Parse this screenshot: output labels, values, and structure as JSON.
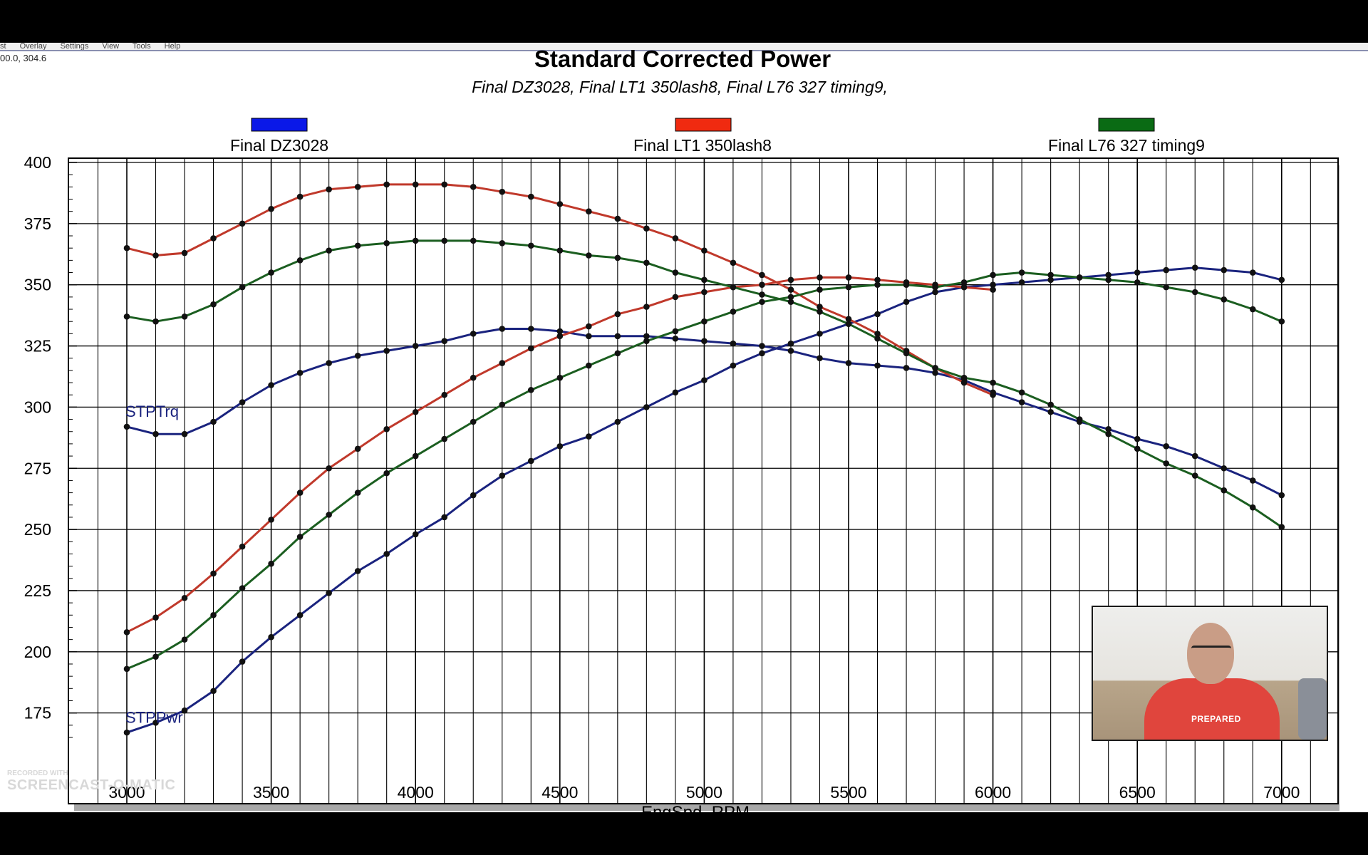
{
  "app": {
    "menu": [
      "st",
      "Overlay",
      "Settings",
      "View",
      "Tools",
      "Help"
    ],
    "coordinate_readout": "00.0, 304.6"
  },
  "chart_data": {
    "type": "line",
    "title": "Standard Corrected Power",
    "subtitle": "Final DZ3028, Final LT1 350lash8, Final L76 327 timing9,",
    "xlabel": "EngSpd, RPM",
    "ylabel": "",
    "xlim": [
      3000,
      7200
    ],
    "ylim": [
      160,
      400
    ],
    "x_ticks": [
      3000,
      3500,
      4000,
      4500,
      5000,
      5500,
      6000,
      6500,
      7000
    ],
    "x_tick_labels": [
      "3000",
      "3500",
      "4000",
      "4500",
      "5000",
      "5500",
      "6000",
      "6500",
      "7000"
    ],
    "y_ticks": [
      175,
      200,
      225,
      250,
      275,
      300,
      325,
      350,
      375,
      400
    ],
    "y_tick_labels": [
      "175",
      "200",
      "225",
      "250",
      "275",
      "300",
      "325",
      "350",
      "375",
      "400"
    ],
    "grid": true,
    "legend_position": "top",
    "curve_labels": [
      {
        "text": "STPTrq",
        "x": 3000,
        "y": 296
      },
      {
        "text": "STPPwr",
        "x": 3000,
        "y": 171
      }
    ],
    "series": [
      {
        "name": "Final DZ3028",
        "color": "#0a18e8",
        "line_color": "#1a237e",
        "metric": "torque",
        "x": [
          3000,
          3100,
          3200,
          3300,
          3400,
          3500,
          3600,
          3700,
          3800,
          3900,
          4000,
          4100,
          4200,
          4300,
          4400,
          4500,
          4600,
          4700,
          4800,
          4900,
          5000,
          5100,
          5200,
          5300,
          5400,
          5500,
          5600,
          5700,
          5800,
          5900,
          6000,
          6100,
          6200,
          6300,
          6400,
          6500,
          6600,
          6700,
          6800,
          6900,
          7000
        ],
        "y": [
          292,
          289,
          289,
          294,
          302,
          309,
          314,
          318,
          321,
          323,
          325,
          327,
          330,
          332,
          332,
          331,
          329,
          329,
          329,
          328,
          327,
          326,
          325,
          323,
          320,
          318,
          317,
          316,
          314,
          311,
          306,
          302,
          298,
          294,
          291,
          287,
          284,
          280,
          275,
          270,
          264
        ]
      },
      {
        "name": "Final DZ3028",
        "color": "#0a18e8",
        "line_color": "#1a237e",
        "metric": "power",
        "x": [
          3000,
          3100,
          3200,
          3300,
          3400,
          3500,
          3600,
          3700,
          3800,
          3900,
          4000,
          4100,
          4200,
          4300,
          4400,
          4500,
          4600,
          4700,
          4800,
          4900,
          5000,
          5100,
          5200,
          5300,
          5400,
          5500,
          5600,
          5700,
          5800,
          5900,
          6000,
          6100,
          6200,
          6300,
          6400,
          6500,
          6600,
          6700,
          6800,
          6900,
          7000
        ],
        "y": [
          167,
          171,
          176,
          184,
          196,
          206,
          215,
          224,
          233,
          240,
          248,
          255,
          264,
          272,
          278,
          284,
          288,
          294,
          300,
          306,
          311,
          317,
          322,
          326,
          330,
          334,
          338,
          343,
          347,
          349,
          350,
          351,
          352,
          353,
          354,
          355,
          356,
          357,
          356,
          355,
          352
        ]
      },
      {
        "name": "Final LT1 350lash8",
        "color": "#f02a10",
        "line_color": "#c0392b",
        "metric": "torque",
        "x": [
          3000,
          3100,
          3200,
          3300,
          3400,
          3500,
          3600,
          3700,
          3800,
          3900,
          4000,
          4100,
          4200,
          4300,
          4400,
          4500,
          4600,
          4700,
          4800,
          4900,
          5000,
          5100,
          5200,
          5300,
          5400,
          5500,
          5600,
          5700,
          5800,
          5900,
          6000
        ],
        "y": [
          365,
          362,
          363,
          369,
          375,
          381,
          386,
          389,
          390,
          391,
          391,
          391,
          390,
          388,
          386,
          383,
          380,
          377,
          373,
          369,
          364,
          359,
          354,
          348,
          341,
          336,
          330,
          323,
          316,
          310,
          305
        ]
      },
      {
        "name": "Final LT1 350lash8",
        "color": "#f02a10",
        "line_color": "#c0392b",
        "metric": "power",
        "x": [
          3000,
          3100,
          3200,
          3300,
          3400,
          3500,
          3600,
          3700,
          3800,
          3900,
          4000,
          4100,
          4200,
          4300,
          4400,
          4500,
          4600,
          4700,
          4800,
          4900,
          5000,
          5100,
          5200,
          5300,
          5400,
          5500,
          5600,
          5700,
          5800,
          5900,
          6000
        ],
        "y": [
          208,
          214,
          222,
          232,
          243,
          254,
          265,
          275,
          283,
          291,
          298,
          305,
          312,
          318,
          324,
          329,
          333,
          338,
          341,
          345,
          347,
          349,
          350,
          352,
          353,
          353,
          352,
          351,
          350,
          349,
          348
        ]
      },
      {
        "name": "Final L76 327 timing9",
        "color": "#0a6b14",
        "line_color": "#1b5e20",
        "metric": "torque",
        "x": [
          3000,
          3100,
          3200,
          3300,
          3400,
          3500,
          3600,
          3700,
          3800,
          3900,
          4000,
          4100,
          4200,
          4300,
          4400,
          4500,
          4600,
          4700,
          4800,
          4900,
          5000,
          5100,
          5200,
          5300,
          5400,
          5500,
          5600,
          5700,
          5800,
          5900,
          6000,
          6100,
          6200,
          6300,
          6400,
          6500,
          6600,
          6700,
          6800,
          6900,
          7000
        ],
        "y": [
          337,
          335,
          337,
          342,
          349,
          355,
          360,
          364,
          366,
          367,
          368,
          368,
          368,
          367,
          366,
          364,
          362,
          361,
          359,
          355,
          352,
          349,
          346,
          343,
          339,
          334,
          328,
          322,
          316,
          312,
          310,
          306,
          301,
          295,
          289,
          283,
          277,
          272,
          266,
          259,
          251
        ]
      },
      {
        "name": "Final L76 327 timing9",
        "color": "#0a6b14",
        "line_color": "#1b5e20",
        "metric": "power",
        "x": [
          3000,
          3100,
          3200,
          3300,
          3400,
          3500,
          3600,
          3700,
          3800,
          3900,
          4000,
          4100,
          4200,
          4300,
          4400,
          4500,
          4600,
          4700,
          4800,
          4900,
          5000,
          5100,
          5200,
          5300,
          5400,
          5500,
          5600,
          5700,
          5800,
          5900,
          6000,
          6100,
          6200,
          6300,
          6400,
          6500,
          6600,
          6700,
          6800,
          6900,
          7000
        ],
        "y": [
          193,
          198,
          205,
          215,
          226,
          236,
          247,
          256,
          265,
          273,
          280,
          287,
          294,
          301,
          307,
          312,
          317,
          322,
          327,
          331,
          335,
          339,
          343,
          345,
          348,
          349,
          350,
          350,
          349,
          351,
          354,
          355,
          354,
          353,
          352,
          351,
          349,
          347,
          344,
          340,
          335
        ]
      }
    ]
  },
  "webcam": {
    "shirt_text": "PREPARED"
  },
  "watermark": {
    "line1": "RECORDED WITH",
    "line2": "SCREENCAST-O-MATIC"
  }
}
